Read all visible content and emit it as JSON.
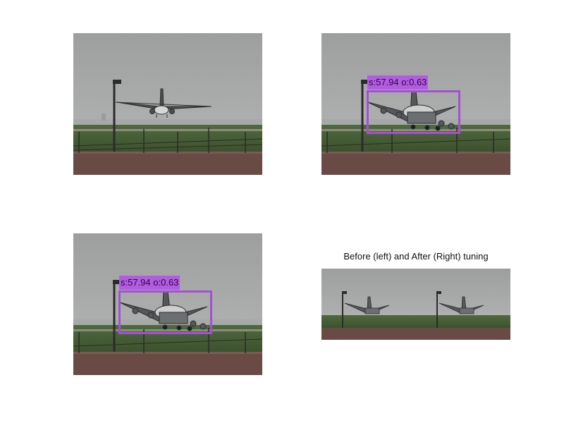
{
  "figure": {
    "bottom_right_title": "Before (left) and After (Right) tuning"
  },
  "detection": {
    "label_text": "s:57.94 o:0.63",
    "box_color": "#a64fd6",
    "label_bg_color": "#b35be3"
  },
  "panels": [
    {
      "id": "top-left",
      "content": "airplane-landing-photo-rear-view"
    },
    {
      "id": "top-right",
      "content": "airplane-landing-photo-with-detection"
    },
    {
      "id": "bottom-left",
      "content": "airplane-landing-photo-with-detection"
    },
    {
      "id": "bottom-right",
      "content": "side-by-side-comparison-photo"
    }
  ]
}
